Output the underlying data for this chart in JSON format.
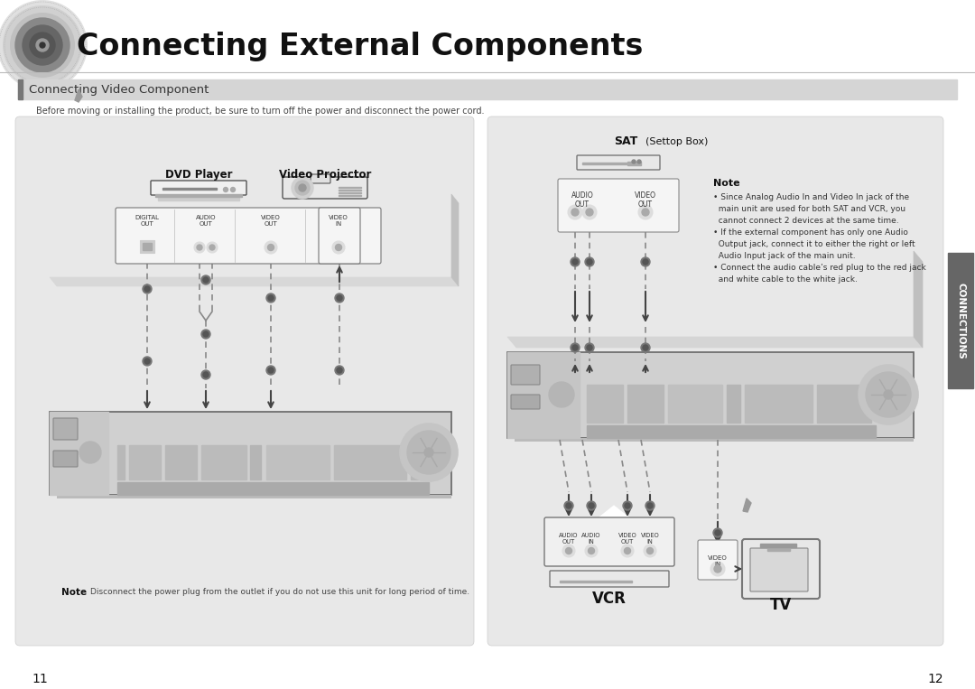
{
  "title": "Connecting External Components",
  "subtitle": "Connecting Video Component",
  "header_note": "Before moving or installing the product, be sure to turn off the power and disconnect the power cord.",
  "left_page_num": "11",
  "right_page_num": "12",
  "connections_tab": "CONNECTIONS",
  "page_bg": "#ffffff",
  "panel_bg": "#e8e8e8",
  "left_dvd_label": "DVD Player",
  "left_proj_label": "Video Projector",
  "left_conn_labels": [
    "DIGITAL\nOUT",
    "AUDIO\nOUT",
    "VIDEO\nOUT",
    "VIDEO\nIN"
  ],
  "left_note": "Disconnect the power plug from the outlet if you do not use this unit for long period of time.",
  "sat_label_bold": "SAT",
  "sat_label_normal": "(Settop Box)",
  "sat_audio_label": "AUDIO\nOUT",
  "sat_video_label": "VIDEO\nOUT",
  "note_title": "Note",
  "note_lines": [
    "• Since Analog Audio In and Video In jack of the",
    "  main unit are used for both SAT and VCR, you",
    "  cannot connect 2 devices at the same time.",
    "• If the external component has only one Audio",
    "  Output jack, connect it to either the right or left",
    "  Audio Input jack of the main unit.",
    "• Connect the audio cable’s red plug to the red jack",
    "  and white cable to the white jack."
  ],
  "vcr_label": "VCR",
  "tv_label": "TV",
  "vcr_conn_labels": [
    "AUDIO\nOUT",
    "AUDIO\nIN",
    "VIDEO\nOUT",
    "VIDEO\nIN"
  ],
  "tv_conn_label": "VIDEO\nIN",
  "tab_bg": "#666666",
  "tab_text_color": "#ffffff"
}
